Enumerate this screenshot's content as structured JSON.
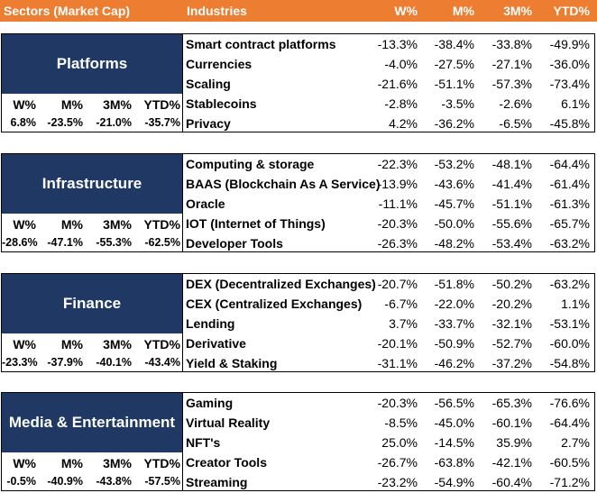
{
  "header": {
    "sectors": "Sectors (Market Cap)",
    "industries": "Industries",
    "w": "W%",
    "m": "M%",
    "m3": "3M%",
    "ytd": "YTD%"
  },
  "sections": [
    {
      "title": "Platforms",
      "col_headers": [
        "W%",
        "M%",
        "3M%",
        "YTD%"
      ],
      "values": [
        "6.8%",
        "-23.5%",
        "-21.0%",
        "-35.7%"
      ],
      "industries": [
        {
          "name": "Smart contract platforms",
          "w": "-13.3%",
          "m": "-38.4%",
          "m3": "-33.8%",
          "ytd": "-49.9%"
        },
        {
          "name": "Currencies",
          "w": "-4.0%",
          "m": "-27.5%",
          "m3": "-27.1%",
          "ytd": "-36.0%"
        },
        {
          "name": "Scaling",
          "w": "-21.6%",
          "m": "-51.1%",
          "m3": "-57.3%",
          "ytd": "-73.4%"
        },
        {
          "name": "Stablecoins",
          "w": "-2.8%",
          "m": "-3.5%",
          "m3": "-2.6%",
          "ytd": "6.1%"
        },
        {
          "name": "Privacy",
          "w": "4.2%",
          "m": "-36.2%",
          "m3": "-6.5%",
          "ytd": "-45.8%"
        }
      ]
    },
    {
      "title": "Infrastructure",
      "col_headers": [
        "W%",
        "M%",
        "3M%",
        "YTD%"
      ],
      "values": [
        "-28.6%",
        "-47.1%",
        "-55.3%",
        "-62.5%"
      ],
      "industries": [
        {
          "name": "Computing & storage",
          "w": "-22.3%",
          "m": "-53.2%",
          "m3": "-48.1%",
          "ytd": "-64.4%"
        },
        {
          "name": "BAAS (Blockchain As A Service)",
          "w": "-13.9%",
          "m": "-43.6%",
          "m3": "-41.4%",
          "ytd": "-61.4%"
        },
        {
          "name": "Oracle",
          "w": "-11.1%",
          "m": "-45.7%",
          "m3": "-51.1%",
          "ytd": "-61.3%"
        },
        {
          "name": "IOT (Internet of Things)",
          "w": "-20.3%",
          "m": "-50.0%",
          "m3": "-55.6%",
          "ytd": "-65.7%"
        },
        {
          "name": "Developer Tools",
          "w": "-26.3%",
          "m": "-48.2%",
          "m3": "-53.4%",
          "ytd": "-63.2%"
        }
      ]
    },
    {
      "title": "Finance",
      "col_headers": [
        "W%",
        "M%",
        "3M%",
        "YTD%"
      ],
      "values": [
        "-23.3%",
        "-37.9%",
        "-40.1%",
        "-43.4%"
      ],
      "industries": [
        {
          "name": "DEX (Decentralized Exchanges)",
          "w": "-20.7%",
          "m": "-51.8%",
          "m3": "-50.2%",
          "ytd": "-63.2%"
        },
        {
          "name": "CEX (Centralized Exchanges)",
          "w": "-6.7%",
          "m": "-22.0%",
          "m3": "-20.2%",
          "ytd": "1.1%"
        },
        {
          "name": "Lending",
          "w": "3.7%",
          "m": "-33.7%",
          "m3": "-32.1%",
          "ytd": "-53.1%"
        },
        {
          "name": "Derivative",
          "w": "-20.1%",
          "m": "-50.9%",
          "m3": "-52.7%",
          "ytd": "-60.0%"
        },
        {
          "name": "Yield & Staking",
          "w": "-31.1%",
          "m": "-46.2%",
          "m3": "-37.2%",
          "ytd": "-54.8%"
        }
      ]
    },
    {
      "title": "Media & Entertainment",
      "col_headers": [
        "W%",
        "M%",
        "3M%",
        "YTD%"
      ],
      "values": [
        "-0.5%",
        "-40.9%",
        "-43.8%",
        "-57.5%"
      ],
      "industries": [
        {
          "name": "Gaming",
          "w": "-20.3%",
          "m": "-56.5%",
          "m3": "-65.3%",
          "ytd": "-76.6%"
        },
        {
          "name": "Virtual Reality",
          "w": "-8.5%",
          "m": "-45.0%",
          "m3": "-60.1%",
          "ytd": "-64.4%"
        },
        {
          "name": "NFT's",
          "w": "25.0%",
          "m": "-14.5%",
          "m3": "35.9%",
          "ytd": "2.7%"
        },
        {
          "name": "Creator Tools",
          "w": "-26.7%",
          "m": "-63.8%",
          "m3": "-42.1%",
          "ytd": "-60.5%"
        },
        {
          "name": "Streaming",
          "w": "-23.2%",
          "m": "-54.9%",
          "m3": "-60.4%",
          "ytd": "-71.2%"
        }
      ]
    }
  ]
}
